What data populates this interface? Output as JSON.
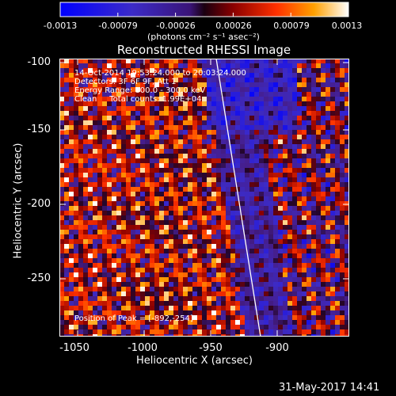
{
  "colorbar": {
    "tick_labels": [
      "-0.0013",
      "-0.00079",
      "-0.00026",
      "0.00026",
      "0.00079",
      "0.0013"
    ],
    "units": "(photons cm⁻² s⁻¹ asec⁻²)"
  },
  "title": "Reconstructed RHESSI Image",
  "info": {
    "line1": "14-Oct-2014 19:53:24.000 to 20:03:24.000",
    "line2": "Detectors: 3F 6F 9F, Att 1",
    "line3": "Energy Range: 100.0 - 300.0 keV",
    "line4": "Clean     Total counts: 1.99E+04",
    "peak": "Position of Peak = [-892,-254]"
  },
  "axes": {
    "xlabel": "Heliocentric X (arcsec)",
    "ylabel": "Heliocentric Y (arcsec)",
    "xticks": [
      "-1050",
      "-1000",
      "-950",
      "-900"
    ],
    "yticks": [
      "-100",
      "-150",
      "-200",
      "-250"
    ]
  },
  "footer": {
    "timestamp": "31-May-2017 14:41"
  }
}
